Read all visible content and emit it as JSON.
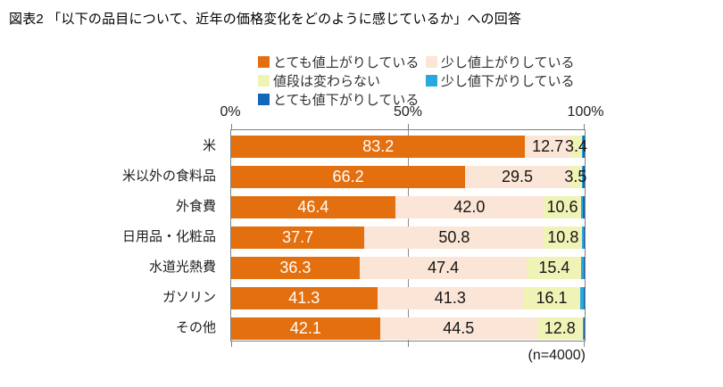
{
  "title": "図表2 「以下の品目について、近年の価格変化をどのように感じているか」への回答",
  "footnote": "(n=4000)",
  "axis": {
    "tick_labels": [
      "0%",
      "50%",
      "100%"
    ],
    "tick_positions": [
      0,
      50,
      100
    ]
  },
  "colors": {
    "very_up": "#e36f0e",
    "slight_up": "#fbe5d6",
    "unchanged": "#eff3b6",
    "slight_down": "#29a8e0",
    "very_down": "#1467b8",
    "plot_border": "#808080",
    "label_on_dark": "#ffffff",
    "label_on_light": "#161616"
  },
  "legend": {
    "items": [
      {
        "label": "とても値上がりしている",
        "color": "#e36f0e"
      },
      {
        "label": "少し値上がりしている",
        "color": "#fbe5d6"
      },
      {
        "label": "値段は変わらない",
        "color": "#eff3b6"
      },
      {
        "label": "少し値下がりしている",
        "color": "#29a8e0"
      },
      {
        "label": "とても値下がりしている",
        "color": "#1467b8"
      }
    ]
  },
  "chart_data": {
    "type": "bar",
    "orientation": "horizontal",
    "stacked": true,
    "xlim": [
      0,
      100
    ],
    "gridline_at": 50,
    "legend_position": "top",
    "categories": [
      "米",
      "米以外の食料品",
      "外食費",
      "日用品・化粧品",
      "水道光熱費",
      "ガソリン",
      "その他"
    ],
    "series": [
      {
        "name": "とても値上がりしている",
        "color": "#e36f0e",
        "label_color": "#ffffff",
        "values": [
          83.2,
          66.2,
          46.4,
          37.7,
          36.3,
          41.3,
          42.1
        ],
        "labels": [
          "83.2",
          "66.2",
          "46.4",
          "37.7",
          "36.3",
          "41.3",
          "42.1"
        ]
      },
      {
        "name": "少し値上がりしている",
        "color": "#fbe5d6",
        "label_color": "#161616",
        "values": [
          12.7,
          29.5,
          42.0,
          50.8,
          47.4,
          41.3,
          44.5
        ],
        "labels": [
          "12.7",
          "29.5",
          "42.0",
          "50.8",
          "47.4",
          "41.3",
          "44.5"
        ]
      },
      {
        "name": "値段は変わらない",
        "color": "#eff3b6",
        "label_color": "#161616",
        "values": [
          3.4,
          3.5,
          10.6,
          10.8,
          15.4,
          16.1,
          12.8
        ],
        "labels": [
          "3.4",
          "3.5",
          "10.6",
          "10.8",
          "15.4",
          "16.1",
          "12.8"
        ]
      },
      {
        "name": "少し値下がりしている",
        "color": "#29a8e0",
        "label_color": null,
        "values": [
          0.2,
          0.3,
          0.6,
          0.4,
          0.6,
          1.0,
          0.4
        ],
        "labels": null,
        "estimated_from_remainder": true
      },
      {
        "name": "とても値下がりしている",
        "color": "#1467b8",
        "label_color": null,
        "values": [
          0.5,
          0.5,
          0.4,
          0.3,
          0.3,
          0.3,
          0.2
        ],
        "labels": null,
        "estimated_from_remainder": true
      }
    ]
  }
}
